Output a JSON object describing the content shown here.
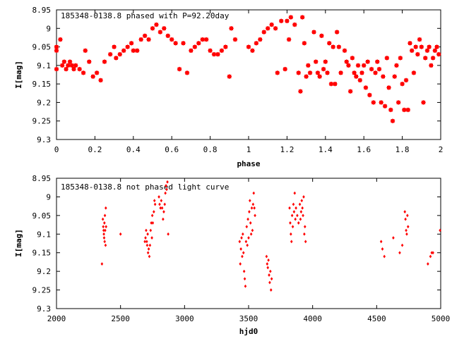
{
  "chart_data": [
    {
      "type": "scatter",
      "title": "185348-0138.8 phased with P=92.20day",
      "xlabel": "phase",
      "ylabel": "I[mag]",
      "xlim": [
        0,
        2
      ],
      "ylim": [
        8.95,
        9.3
      ],
      "y_inverted": true,
      "grid": false,
      "marker": "star",
      "color": "#ff0000",
      "xticks": [
        "0",
        "0.2",
        "0.4",
        "0.6",
        "0.8",
        "1",
        "1.2",
        "1.4",
        "1.6",
        "1.8",
        "2"
      ],
      "yticks": [
        "8.95",
        "9",
        "9.05",
        "9.1",
        "9.15",
        "9.2",
        "9.25",
        "9.3"
      ],
      "points": [
        [
          0.0,
          9.05
        ],
        [
          0.0,
          9.06
        ],
        [
          0.0,
          9.11
        ],
        [
          0.02,
          9.03
        ],
        [
          0.03,
          9.1
        ],
        [
          0.04,
          9.09
        ],
        [
          0.05,
          9.11
        ],
        [
          0.06,
          9.1
        ],
        [
          0.07,
          9.09
        ],
        [
          0.08,
          9.1
        ],
        [
          0.09,
          9.11
        ],
        [
          0.1,
          9.1
        ],
        [
          0.12,
          9.11
        ],
        [
          0.14,
          9.12
        ],
        [
          0.15,
          9.06
        ],
        [
          0.17,
          9.09
        ],
        [
          0.19,
          9.13
        ],
        [
          0.21,
          9.12
        ],
        [
          0.23,
          9.14
        ],
        [
          0.25,
          9.09
        ],
        [
          0.28,
          9.07
        ],
        [
          0.3,
          9.05
        ],
        [
          0.31,
          9.08
        ],
        [
          0.33,
          9.07
        ],
        [
          0.35,
          9.06
        ],
        [
          0.37,
          9.05
        ],
        [
          0.39,
          9.04
        ],
        [
          0.4,
          9.06
        ],
        [
          0.42,
          9.06
        ],
        [
          0.44,
          9.03
        ],
        [
          0.46,
          9.02
        ],
        [
          0.48,
          9.03
        ],
        [
          0.5,
          9.0
        ],
        [
          0.52,
          8.99
        ],
        [
          0.54,
          9.01
        ],
        [
          0.56,
          9.0
        ],
        [
          0.58,
          9.02
        ],
        [
          0.6,
          9.03
        ],
        [
          0.62,
          9.04
        ],
        [
          0.64,
          9.11
        ],
        [
          0.66,
          9.04
        ],
        [
          0.68,
          9.12
        ],
        [
          0.7,
          9.06
        ],
        [
          0.72,
          9.05
        ],
        [
          0.74,
          9.04
        ],
        [
          0.76,
          9.03
        ],
        [
          0.78,
          9.03
        ],
        [
          0.8,
          9.06
        ],
        [
          0.82,
          9.07
        ],
        [
          0.84,
          9.07
        ],
        [
          0.86,
          9.06
        ],
        [
          0.88,
          9.05
        ],
        [
          0.9,
          9.13
        ],
        [
          0.91,
          9.0
        ],
        [
          0.93,
          9.03
        ],
        [
          1.0,
          9.05
        ],
        [
          1.02,
          9.06
        ],
        [
          1.04,
          9.04
        ],
        [
          1.06,
          9.03
        ],
        [
          1.08,
          9.01
        ],
        [
          1.1,
          9.0
        ],
        [
          1.12,
          8.99
        ],
        [
          1.14,
          9.0
        ],
        [
          1.15,
          9.12
        ],
        [
          1.17,
          8.98
        ],
        [
          1.19,
          9.11
        ],
        [
          1.2,
          8.98
        ],
        [
          1.21,
          9.03
        ],
        [
          1.22,
          8.97
        ],
        [
          1.24,
          8.99
        ],
        [
          1.26,
          9.12
        ],
        [
          1.27,
          9.17
        ],
        [
          1.28,
          8.97
        ],
        [
          1.29,
          9.04
        ],
        [
          1.3,
          9.13
        ],
        [
          1.31,
          9.1
        ],
        [
          1.32,
          9.12
        ],
        [
          1.34,
          9.01
        ],
        [
          1.35,
          9.09
        ],
        [
          1.36,
          9.12
        ],
        [
          1.37,
          9.13
        ],
        [
          1.38,
          9.02
        ],
        [
          1.39,
          9.11
        ],
        [
          1.4,
          9.09
        ],
        [
          1.41,
          9.12
        ],
        [
          1.42,
          9.04
        ],
        [
          1.43,
          9.15
        ],
        [
          1.44,
          9.05
        ],
        [
          1.45,
          9.15
        ],
        [
          1.46,
          9.01
        ],
        [
          1.47,
          9.05
        ],
        [
          1.48,
          9.12
        ],
        [
          1.5,
          9.06
        ],
        [
          1.51,
          9.09
        ],
        [
          1.52,
          9.1
        ],
        [
          1.53,
          9.17
        ],
        [
          1.54,
          9.08
        ],
        [
          1.55,
          9.12
        ],
        [
          1.56,
          9.13
        ],
        [
          1.57,
          9.1
        ],
        [
          1.58,
          9.14
        ],
        [
          1.59,
          9.12
        ],
        [
          1.6,
          9.1
        ],
        [
          1.61,
          9.16
        ],
        [
          1.62,
          9.09
        ],
        [
          1.63,
          9.18
        ],
        [
          1.64,
          9.11
        ],
        [
          1.65,
          9.2
        ],
        [
          1.66,
          9.12
        ],
        [
          1.67,
          9.09
        ],
        [
          1.68,
          9.11
        ],
        [
          1.69,
          9.2
        ],
        [
          1.7,
          9.13
        ],
        [
          1.71,
          9.21
        ],
        [
          1.72,
          9.08
        ],
        [
          1.73,
          9.16
        ],
        [
          1.74,
          9.22
        ],
        [
          1.75,
          9.25
        ],
        [
          1.76,
          9.13
        ],
        [
          1.77,
          9.1
        ],
        [
          1.78,
          9.2
        ],
        [
          1.79,
          9.08
        ],
        [
          1.8,
          9.15
        ],
        [
          1.81,
          9.22
        ],
        [
          1.82,
          9.14
        ],
        [
          1.83,
          9.22
        ],
        [
          1.84,
          9.04
        ],
        [
          1.85,
          9.06
        ],
        [
          1.86,
          9.12
        ],
        [
          1.87,
          9.05
        ],
        [
          1.88,
          9.07
        ],
        [
          1.89,
          9.03
        ],
        [
          1.9,
          9.05
        ],
        [
          1.91,
          9.2
        ],
        [
          1.92,
          9.08
        ],
        [
          1.93,
          9.06
        ],
        [
          1.94,
          9.05
        ],
        [
          1.95,
          9.1
        ],
        [
          1.96,
          9.08
        ],
        [
          1.97,
          9.06
        ],
        [
          1.98,
          9.05
        ],
        [
          1.99,
          9.07
        ]
      ]
    },
    {
      "type": "scatter",
      "title": "185348-0138.8 not phased light curve",
      "xlabel": "hjd0",
      "ylabel": "I[mag]",
      "xlim": [
        2000,
        5000
      ],
      "ylim": [
        8.95,
        9.3
      ],
      "y_inverted": true,
      "grid": false,
      "marker": "diamond",
      "color": "#ff0000",
      "xticks": [
        "2000",
        "2500",
        "3000",
        "3500",
        "4000",
        "4500",
        "5000"
      ],
      "yticks": [
        "8.95",
        "9",
        "9.05",
        "9.1",
        "9.15",
        "9.2",
        "9.25",
        "9.3"
      ],
      "points": [
        [
          2355,
          9.18
        ],
        [
          2362,
          9.06
        ],
        [
          2365,
          9.08
        ],
        [
          2368,
          9.09
        ],
        [
          2370,
          9.1
        ],
        [
          2372,
          9.11
        ],
        [
          2374,
          9.07
        ],
        [
          2376,
          9.12
        ],
        [
          2378,
          9.05
        ],
        [
          2380,
          9.09
        ],
        [
          2383,
          9.13
        ],
        [
          2385,
          9.03
        ],
        [
          2387,
          9.08
        ],
        [
          2500,
          9.1
        ],
        [
          2690,
          9.12
        ],
        [
          2695,
          9.11
        ],
        [
          2700,
          9.09
        ],
        [
          2705,
          9.12
        ],
        [
          2708,
          9.13
        ],
        [
          2712,
          9.1
        ],
        [
          2715,
          9.15
        ],
        [
          2720,
          9.14
        ],
        [
          2725,
          9.16
        ],
        [
          2730,
          9.13
        ],
        [
          2735,
          9.09
        ],
        [
          2740,
          9.07
        ],
        [
          2745,
          9.11
        ],
        [
          2748,
          9.05
        ],
        [
          2752,
          9.07
        ],
        [
          2760,
          9.04
        ],
        [
          2765,
          9.01
        ],
        [
          2770,
          9.02
        ],
        [
          2800,
          9.0
        ],
        [
          2805,
          9.02
        ],
        [
          2812,
          9.03
        ],
        [
          2818,
          9.01
        ],
        [
          2825,
          9.03
        ],
        [
          2832,
          9.06
        ],
        [
          2838,
          9.04
        ],
        [
          2845,
          9.02
        ],
        [
          2850,
          8.99
        ],
        [
          2855,
          8.97
        ],
        [
          2860,
          8.98
        ],
        [
          2866,
          8.96
        ],
        [
          2872,
          9.1
        ],
        [
          3430,
          9.12
        ],
        [
          3435,
          9.18
        ],
        [
          3440,
          9.14
        ],
        [
          3445,
          9.11
        ],
        [
          3450,
          9.16
        ],
        [
          3455,
          9.1
        ],
        [
          3460,
          9.15
        ],
        [
          3465,
          9.2
        ],
        [
          3470,
          9.22
        ],
        [
          3475,
          9.24
        ],
        [
          3480,
          9.12
        ],
        [
          3485,
          9.08
        ],
        [
          3490,
          9.13
        ],
        [
          3495,
          9.06
        ],
        [
          3500,
          9.11
        ],
        [
          3505,
          9.04
        ],
        [
          3510,
          9.01
        ],
        [
          3515,
          9.07
        ],
        [
          3520,
          9.1
        ],
        [
          3525,
          9.03
        ],
        [
          3530,
          9.09
        ],
        [
          3535,
          9.02
        ],
        [
          3540,
          8.99
        ],
        [
          3545,
          9.03
        ],
        [
          3550,
          9.05
        ],
        [
          3640,
          9.16
        ],
        [
          3645,
          9.18
        ],
        [
          3650,
          9.19
        ],
        [
          3655,
          9.17
        ],
        [
          3660,
          9.21
        ],
        [
          3665,
          9.23
        ],
        [
          3670,
          9.2
        ],
        [
          3675,
          9.25
        ],
        [
          3680,
          9.22
        ],
        [
          3820,
          9.03
        ],
        [
          3825,
          9.07
        ],
        [
          3830,
          9.1
        ],
        [
          3835,
          9.12
        ],
        [
          3840,
          9.05
        ],
        [
          3845,
          9.08
        ],
        [
          3850,
          9.02
        ],
        [
          3855,
          9.04
        ],
        [
          3860,
          8.99
        ],
        [
          3865,
          9.06
        ],
        [
          3870,
          9.03
        ],
        [
          3880,
          9.05
        ],
        [
          3890,
          9.07
        ],
        [
          3900,
          9.02
        ],
        [
          3905,
          9.06
        ],
        [
          3910,
          9.04
        ],
        [
          3915,
          9.01
        ],
        [
          3920,
          9.03
        ],
        [
          3925,
          9.05
        ],
        [
          3930,
          9.0
        ],
        [
          3935,
          9.1
        ],
        [
          3940,
          9.08
        ],
        [
          3945,
          9.12
        ],
        [
          4535,
          9.12
        ],
        [
          4545,
          9.14
        ],
        [
          4560,
          9.16
        ],
        [
          4630,
          9.11
        ],
        [
          4680,
          9.15
        ],
        [
          4700,
          9.13
        ],
        [
          4720,
          9.04
        ],
        [
          4725,
          9.06
        ],
        [
          4730,
          9.09
        ],
        [
          4735,
          9.1
        ],
        [
          4740,
          9.05
        ],
        [
          4745,
          9.08
        ],
        [
          4900,
          9.18
        ],
        [
          4920,
          9.16
        ],
        [
          4930,
          9.15
        ],
        [
          4940,
          9.15
        ],
        [
          4995,
          9.09
        ]
      ]
    }
  ]
}
